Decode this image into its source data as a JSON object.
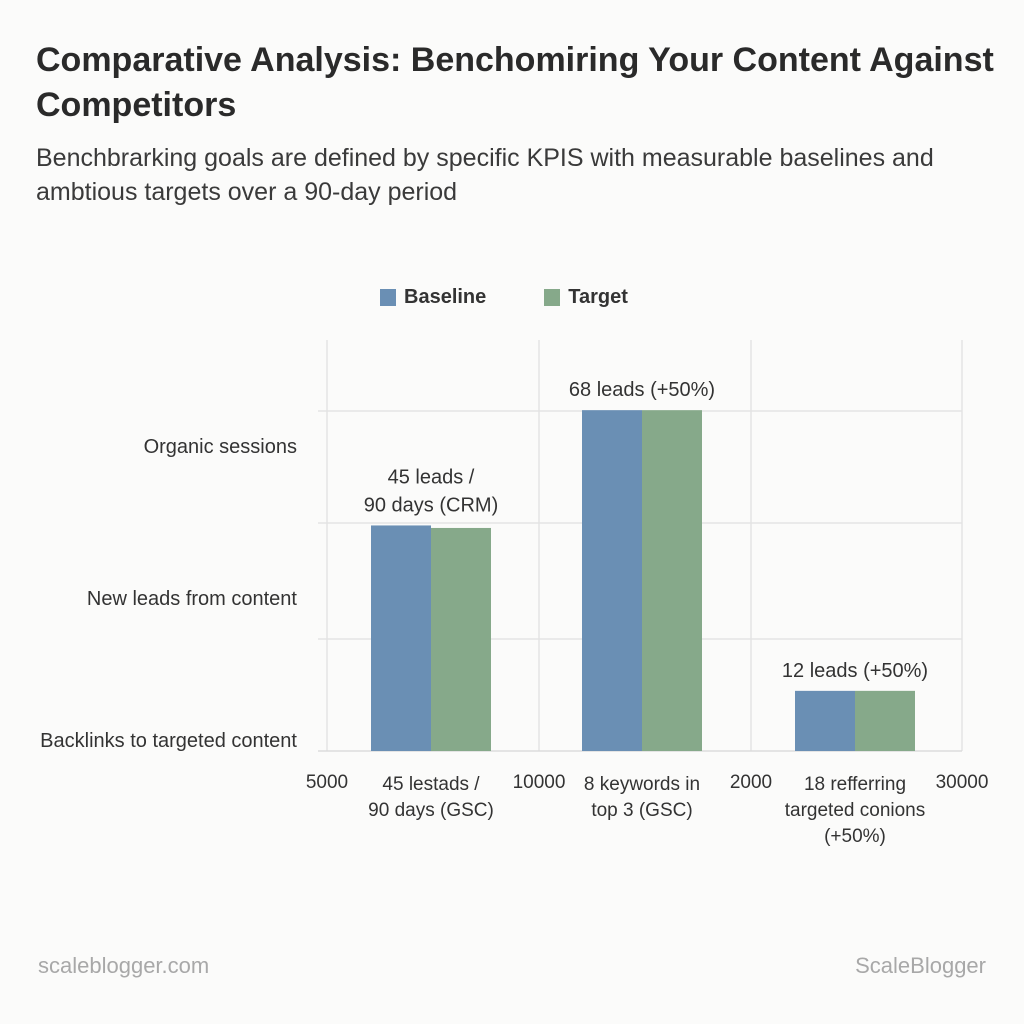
{
  "header": {
    "title": "Comparative Analysis: Benchomiring Your Content Against Competitors",
    "subtitle": "Benchbrarking goals are defined by specific KPIS with measurable baselines and ambtious targets over a 90-day period"
  },
  "footer": {
    "left_text": "scaleblogger.com",
    "right_text": "ScaleBlogger"
  },
  "chart_data": {
    "type": "bar",
    "title": "",
    "legend": {
      "position": "top",
      "entries": [
        {
          "name": "Baseline",
          "color": "#6a8fb4"
        },
        {
          "name": "Target",
          "color": "#86a98a"
        }
      ]
    },
    "y_tick_labels": [
      "Organic sessions",
      "New leads from content",
      "Backlinks to targeted content"
    ],
    "x_tick_labels": [
      "5000",
      "10000",
      "2000",
      "30000"
    ],
    "categories": [
      "45 lestads / 90 days (GSC)",
      "8 keywords in top 3 (GSC)",
      "18 refferring targeted conions (+50%)"
    ],
    "series": [
      {
        "name": "Baseline",
        "color": "#6a8fb4",
        "values": [
          45,
          68,
          12
        ]
      },
      {
        "name": "Target",
        "color": "#86a98a",
        "values": [
          44.5,
          68,
          12
        ]
      }
    ],
    "data_labels": [
      "45 leads / 90 days (CRM)",
      "68 leads (+50%)",
      "12 leads (+50%)"
    ],
    "ylim": [
      0,
      82
    ],
    "grid": true
  }
}
